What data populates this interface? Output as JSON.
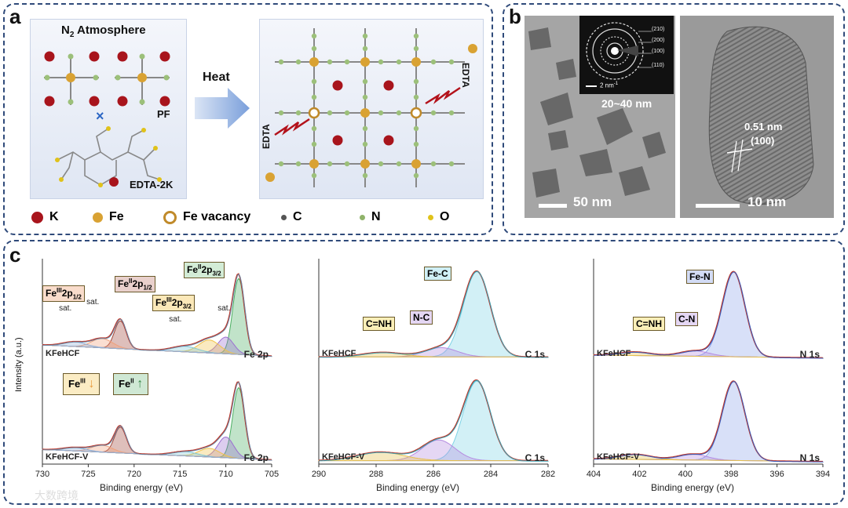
{
  "panel_a": {
    "label": "a",
    "left_title": "N",
    "left_title_sub": "2",
    "left_title_rest": " Atmosphere",
    "pf": "PF",
    "edta2k": "EDTA-2K",
    "heat": "Heat",
    "edta_left": "EDTA",
    "edta_right": "EDTA",
    "legend": [
      {
        "symbol": "K",
        "label": "K",
        "color": "#a8141c"
      },
      {
        "symbol": "Fe",
        "label": "Fe",
        "color": "#d9a233"
      },
      {
        "symbol": "Fe vacancy",
        "label": "Fe vacancy",
        "color": "#c08a2a"
      },
      {
        "symbol": "C",
        "label": "C",
        "color": "#555555"
      },
      {
        "symbol": "N",
        "label": "N",
        "color": "#8fb36a"
      },
      {
        "symbol": "O",
        "label": "O",
        "color": "#e0c21a"
      }
    ]
  },
  "panel_b": {
    "label": "b",
    "size_range": "20~40 nm",
    "scale_left": "50 nm",
    "saed_scale": "2 nm",
    "saed_scale_sup": "-1",
    "rings": [
      "(210)",
      "(200)",
      "(100)",
      "(110)"
    ],
    "lattice": "0.51 nm",
    "lattice_plane": "(100)",
    "scale_right": "10 nm"
  },
  "panel_c": {
    "label": "c",
    "ylabel": "Intensity (a.u.)",
    "fe": {
      "xlabel": "Binding energy (eV)",
      "ticks": [
        "730",
        "725",
        "720",
        "715",
        "710",
        "705"
      ],
      "region": "Fe 2p",
      "top_sample": "KFeHCF",
      "bottom_sample": "KFeHCF-V",
      "sat": "sat.",
      "peaks": {
        "fe3_12": "2p",
        "fe2_12": "2p",
        "fe3_32": "2p",
        "fe2_32": "2p",
        "fe3_sup": "III",
        "fe2_sup": "II",
        "j12": "1/2",
        "j32": "3/2",
        "fe": "Fe"
      },
      "indicator_fe3": "Fe",
      "indicator_fe3_sup": "III",
      "indicator_fe2": "Fe",
      "indicator_fe2_sup": "II"
    },
    "c1s": {
      "xlabel": "Binding energy (eV)",
      "ticks": [
        "290",
        "288",
        "286",
        "284",
        "282"
      ],
      "region": "C 1s",
      "top_sample": "KFeHCF",
      "bottom_sample": "KFeHCF-V",
      "peaks": [
        "Fe-C",
        "N-C",
        "C=NH"
      ]
    },
    "n1s": {
      "xlabel": "Binding energy (eV)",
      "ticks": [
        "404",
        "402",
        "400",
        "398",
        "396",
        "394"
      ],
      "region": "N 1s",
      "top_sample": "KFeHCF",
      "bottom_sample": "KFeHCF-V",
      "peaks": [
        "Fe-N",
        "C-N",
        "C=NH"
      ]
    }
  },
  "watermark": "大数跨境"
}
